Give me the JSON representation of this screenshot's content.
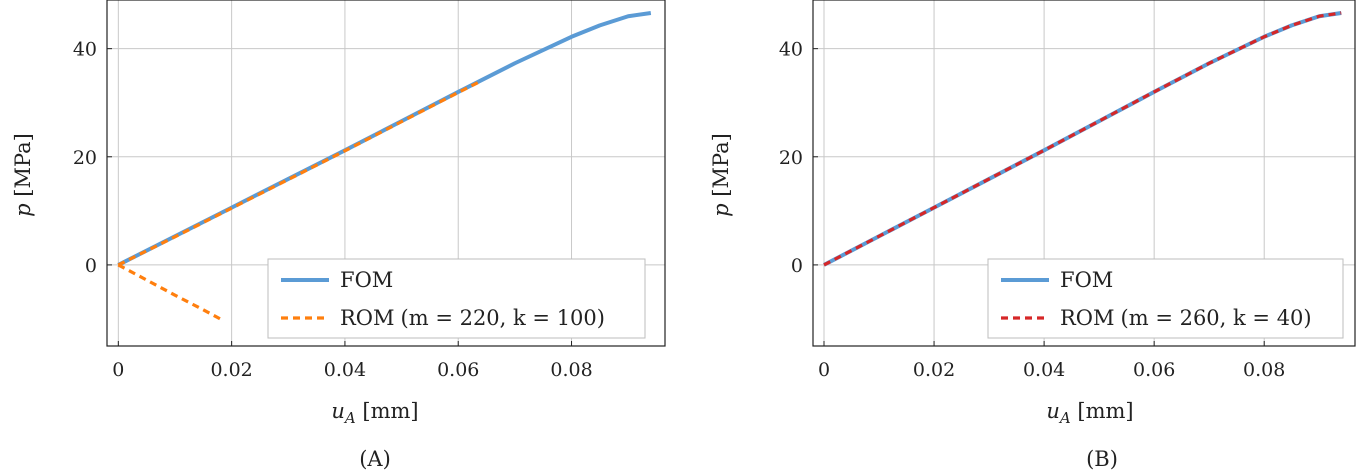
{
  "chart_data": [
    {
      "type": "line",
      "caption": "(A)",
      "xlabel": "u_A [mm]",
      "xlabel_var": "u",
      "xlabel_sub": "A",
      "xlabel_unit": " [mm]",
      "ylabel": "p [MPa]",
      "ylabel_var": "p",
      "ylabel_unit": " [MPa]",
      "xlim": [
        -0.002,
        0.0965
      ],
      "ylim": [
        -15,
        49
      ],
      "xticks": [
        0,
        0.02,
        0.04,
        0.06,
        0.08
      ],
      "xtick_labels": [
        "0",
        "0.02",
        "0.04",
        "0.06",
        "0.08"
      ],
      "yticks": [
        0,
        20,
        40
      ],
      "ytick_labels": [
        "0",
        "20",
        "40"
      ],
      "grid": true,
      "legend_position": "bottom-right",
      "series": [
        {
          "name": "FOM",
          "style": "solid",
          "color": "#5b9bd5",
          "segments": [
            [
              [
                0,
                0
              ],
              [
                0.01,
                5.3
              ],
              [
                0.02,
                10.6
              ],
              [
                0.03,
                15.9
              ],
              [
                0.04,
                21.2
              ],
              [
                0.05,
                26.6
              ],
              [
                0.06,
                32.0
              ],
              [
                0.07,
                37.3
              ],
              [
                0.08,
                42.2
              ],
              [
                0.085,
                44.3
              ],
              [
                0.09,
                46.0
              ],
              [
                0.094,
                46.6
              ]
            ]
          ]
        },
        {
          "name": "ROM",
          "legend_params": "(m = 220, k = 100)",
          "style": "dashed",
          "color": "#ff7f0e",
          "segments": [
            [
              [
                0,
                0
              ],
              [
                0.01,
                5.2
              ],
              [
                0.02,
                10.5
              ],
              [
                0.03,
                15.8
              ],
              [
                0.04,
                21.1
              ],
              [
                0.05,
                26.5
              ],
              [
                0.06,
                31.9
              ],
              [
                0.064,
                34.0
              ]
            ],
            [
              [
                0,
                0
              ],
              [
                0.005,
                -2.8
              ],
              [
                0.01,
                -5.6
              ],
              [
                0.015,
                -8.3
              ],
              [
                0.018,
                -10.0
              ]
            ]
          ]
        }
      ]
    },
    {
      "type": "line",
      "caption": "(B)",
      "xlabel": "u_A [mm]",
      "xlabel_var": "u",
      "xlabel_sub": "A",
      "xlabel_unit": " [mm]",
      "ylabel": "p [MPa]",
      "ylabel_var": "p",
      "ylabel_unit": " [MPa]",
      "xlim": [
        -0.002,
        0.0965
      ],
      "ylim": [
        -15,
        49
      ],
      "xticks": [
        0,
        0.02,
        0.04,
        0.06,
        0.08
      ],
      "xtick_labels": [
        "0",
        "0.02",
        "0.04",
        "0.06",
        "0.08"
      ],
      "yticks": [
        0,
        20,
        40
      ],
      "ytick_labels": [
        "0",
        "20",
        "40"
      ],
      "grid": true,
      "legend_position": "bottom-right",
      "series": [
        {
          "name": "FOM",
          "style": "solid",
          "color": "#5b9bd5",
          "segments": [
            [
              [
                0,
                0
              ],
              [
                0.01,
                5.3
              ],
              [
                0.02,
                10.6
              ],
              [
                0.03,
                15.9
              ],
              [
                0.04,
                21.2
              ],
              [
                0.05,
                26.6
              ],
              [
                0.06,
                32.0
              ],
              [
                0.07,
                37.3
              ],
              [
                0.08,
                42.2
              ],
              [
                0.085,
                44.3
              ],
              [
                0.09,
                46.0
              ],
              [
                0.094,
                46.6
              ]
            ]
          ]
        },
        {
          "name": "ROM",
          "legend_params": "(m = 260, k = 40)",
          "style": "dashed",
          "color": "#d62728",
          "segments": [
            [
              [
                0,
                0
              ],
              [
                0.01,
                5.3
              ],
              [
                0.02,
                10.6
              ],
              [
                0.03,
                15.9
              ],
              [
                0.04,
                21.2
              ],
              [
                0.05,
                26.6
              ],
              [
                0.06,
                32.0
              ],
              [
                0.07,
                37.3
              ],
              [
                0.08,
                42.2
              ],
              [
                0.085,
                44.3
              ],
              [
                0.09,
                46.0
              ],
              [
                0.094,
                46.6
              ]
            ]
          ]
        }
      ]
    }
  ]
}
